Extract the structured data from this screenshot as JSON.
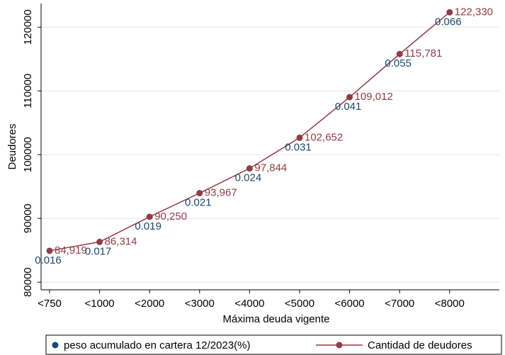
{
  "chart_data": {
    "type": "line",
    "xlabel": "Máxima deuda vigente",
    "ylabel": "Deudores",
    "categories": [
      "<750",
      "<1000",
      "<2000",
      "<3000",
      "<4000",
      "<5000",
      "<6000",
      "<7000",
      "<8000"
    ],
    "series": [
      {
        "name": "Cantidad de deudores",
        "color": "#903c46",
        "values": [
          84919,
          86314,
          90250,
          93967,
          97844,
          102652,
          109012,
          115781,
          122330
        ],
        "value_labels": [
          "84,919",
          "86,314",
          "90,250",
          "93,967",
          "97,844",
          "102,652",
          "109,012",
          "115,781",
          "122,330"
        ]
      },
      {
        "name": "peso acumulado en cartera 12/2023(%)",
        "color": "#1a476f",
        "values": [
          0.016,
          0.017,
          0.019,
          0.021,
          0.024,
          0.031,
          0.041,
          0.055,
          0.066
        ]
      }
    ],
    "ylim": [
      78800,
      123700
    ],
    "yticks": [
      80000,
      90000,
      100000,
      110000,
      120000
    ],
    "grid": true
  }
}
